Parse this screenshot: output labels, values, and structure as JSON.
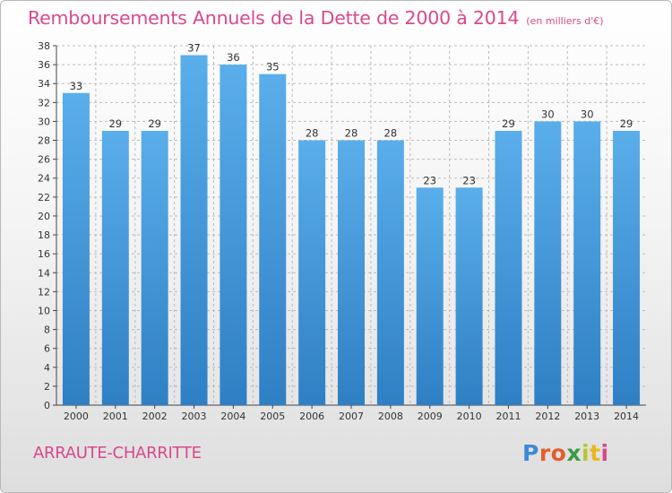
{
  "chart_data": {
    "type": "bar",
    "title": "Remboursements Annuels de la Dette de 2000 à 2014",
    "subtitle": "(en milliers d'€)",
    "categories": [
      "2000",
      "2001",
      "2002",
      "2003",
      "2004",
      "2005",
      "2006",
      "2007",
      "2008",
      "2009",
      "2010",
      "2011",
      "2012",
      "2013",
      "2014"
    ],
    "values": [
      33,
      29,
      29,
      37,
      36,
      35,
      28,
      28,
      28,
      23,
      23,
      29,
      30,
      30,
      29
    ],
    "ylim": [
      0,
      38
    ],
    "yticks": [
      0,
      2,
      4,
      6,
      8,
      10,
      12,
      14,
      16,
      18,
      20,
      22,
      24,
      26,
      28,
      30,
      32,
      34,
      36,
      38
    ],
    "xlabel": "",
    "ylabel": "",
    "grid": true,
    "bar_color_top": "#5aaeea",
    "bar_color_bottom": "#2f7fc4"
  },
  "footer": {
    "commune": "ARRAUTE-CHARRITTE",
    "logo_letters": [
      "P",
      "r",
      "o",
      "x",
      "i",
      "t",
      "i"
    ]
  },
  "colors": {
    "accent": "#d9488d",
    "grid": "#bbbbbb",
    "axis": "#444444"
  }
}
